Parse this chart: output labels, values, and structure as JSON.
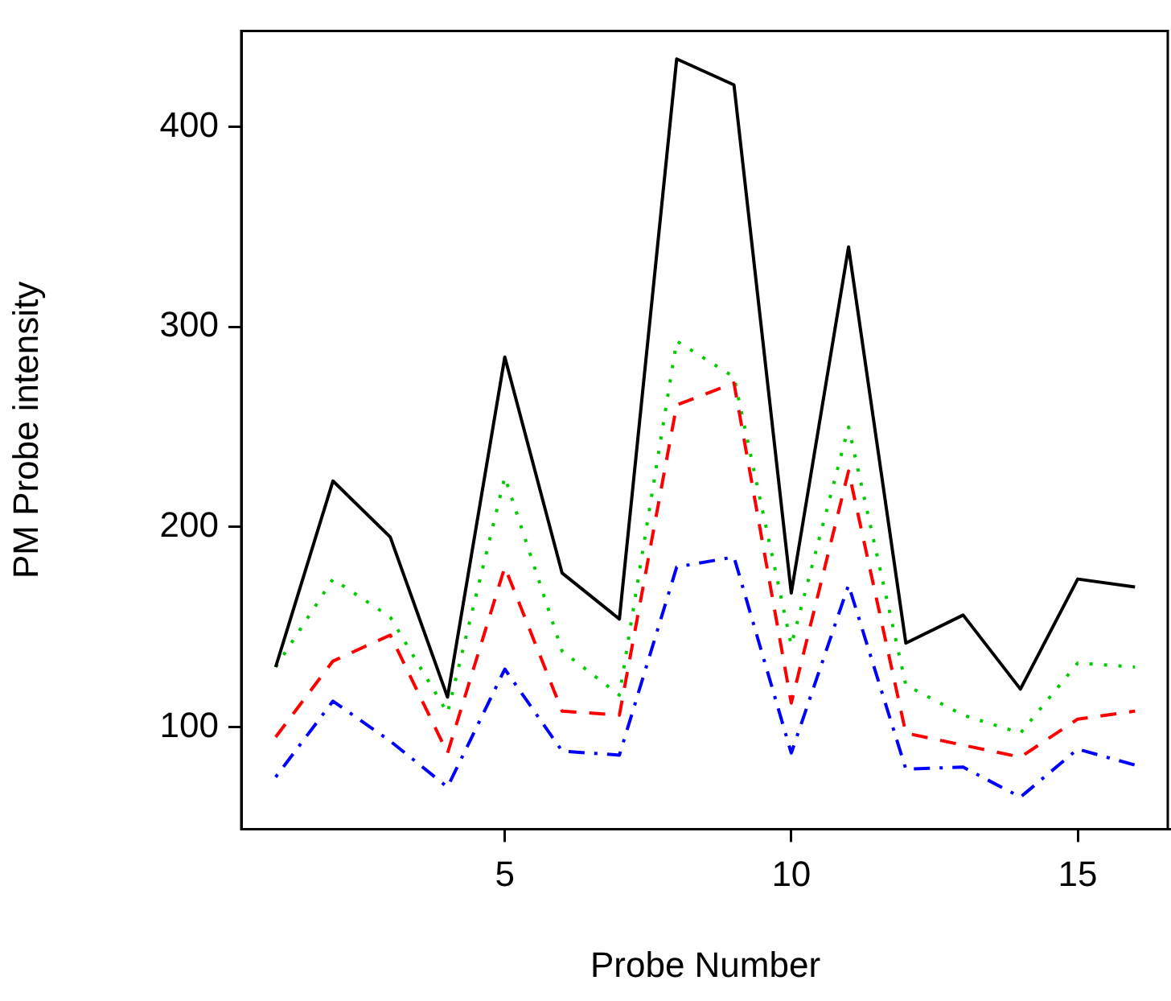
{
  "chart_data": {
    "type": "line",
    "xlabel": "Probe Number",
    "ylabel": "PM Probe intensity",
    "x": [
      1,
      2,
      3,
      4,
      5,
      6,
      7,
      8,
      9,
      10,
      11,
      12,
      13,
      14,
      15,
      16
    ],
    "series": [
      {
        "color": "#000000",
        "line_style": "solid",
        "values": [
          130,
          223,
          195,
          115,
          285,
          177,
          154,
          434,
          421,
          167,
          340,
          142,
          156,
          119,
          174,
          170
        ]
      },
      {
        "color": "#ff0000",
        "line_style": "dashed",
        "values": [
          95,
          133,
          146,
          87,
          180,
          108,
          106,
          261,
          272,
          112,
          228,
          97,
          91,
          85,
          104,
          108
        ]
      },
      {
        "color": "#00cd00",
        "line_style": "dotted",
        "values": [
          130,
          174,
          155,
          107,
          225,
          138,
          116,
          293,
          275,
          141,
          250,
          121,
          106,
          97,
          132,
          130
        ]
      },
      {
        "color": "#0000ff",
        "line_style": "dashdot",
        "values": [
          75,
          113,
          93,
          70,
          129,
          88,
          86,
          180,
          185,
          87,
          171,
          79,
          80,
          65,
          89,
          81
        ]
      }
    ],
    "xlim": [
      0.4,
      16.6
    ],
    "xticks": [
      5,
      10,
      15
    ],
    "ylim": [
      49,
      448
    ],
    "yticks": [
      100,
      200,
      300,
      400
    ],
    "marker": "none",
    "legend": false
  }
}
